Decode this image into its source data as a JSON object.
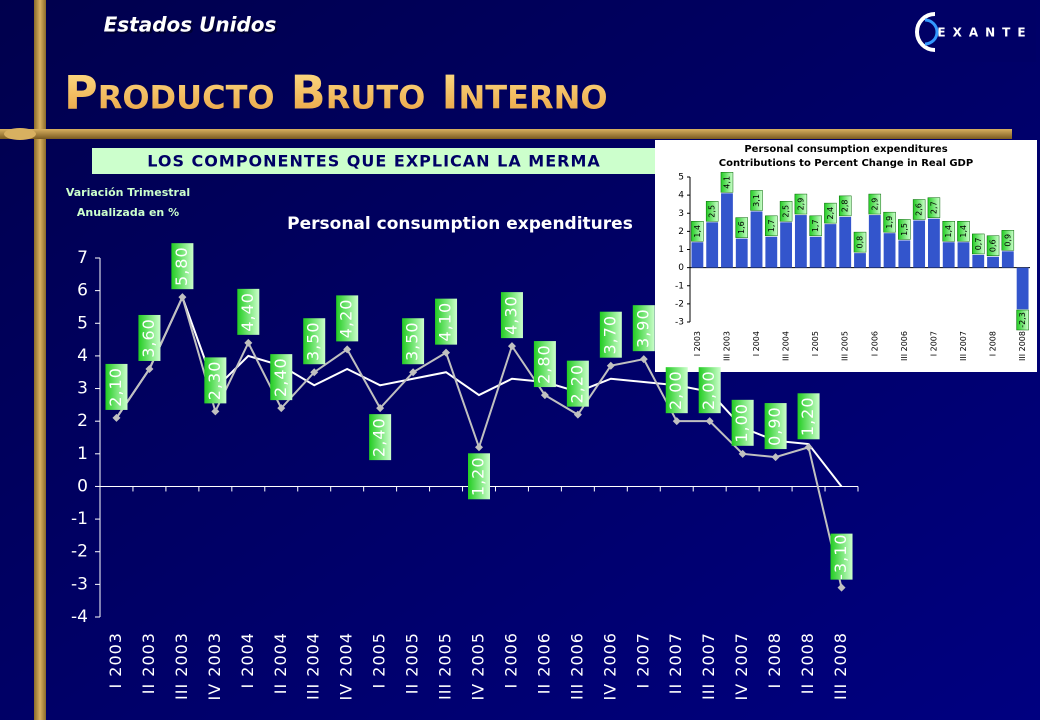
{
  "header": {
    "region": "Estados Unidos",
    "title": "Producto Bruto Interno",
    "logo": "EXANTE"
  },
  "subtitle_box": "LOS COMPONENTES QUE EXPLICAN LA MERMA",
  "chart_data": [
    {
      "type": "line",
      "title": "Personal consumption expenditures",
      "ylabel": [
        "Variación Trimestral",
        "Anualizada en %"
      ],
      "categories": [
        "I 2003",
        "II 2003",
        "III 2003",
        "IV 2003",
        "I 2004",
        "II 2004",
        "III 2004",
        "IV 2004",
        "I 2005",
        "II 2005",
        "III 2005",
        "IV 2005",
        "I 2006",
        "II 2006",
        "III 2006",
        "IV 2006",
        "I 2007",
        "II 2007",
        "III 2007",
        "IV 2007",
        "I 2008",
        "II 2008",
        "III 2008"
      ],
      "series": [
        {
          "color": "#c0c0c0",
          "values": [
            2.1,
            3.6,
            5.8,
            2.3,
            4.4,
            2.4,
            3.5,
            4.2,
            2.4,
            3.5,
            4.1,
            1.2,
            4.3,
            2.8,
            2.2,
            3.7,
            3.9,
            2.0,
            2.0,
            1.0,
            0.9,
            1.2,
            -3.1
          ],
          "value_labels": [
            "2,10",
            "3,60",
            "5,80",
            "2,30",
            "4,40",
            "2,40",
            "3,50",
            "4,20",
            "2,40",
            "3,50",
            "4,10",
            "1,20",
            "4,30",
            "2,80",
            "2,20",
            "3,70",
            "3,90",
            "2,00",
            "2,00",
            "1,00",
            "0,90",
            "1,20",
            "-3,10"
          ]
        },
        {
          "color": "#ffffff",
          "values": [
            2.1,
            3.6,
            5.8,
            3.0,
            4.0,
            3.7,
            3.1,
            3.6,
            3.1,
            3.3,
            3.5,
            2.8,
            3.3,
            3.2,
            2.9,
            3.3,
            3.2,
            3.1,
            2.9,
            1.8,
            1.4,
            1.3,
            0.0
          ]
        }
      ],
      "ylim": [
        -4,
        7
      ],
      "yticks": [
        -4,
        -3,
        -2,
        -1,
        0,
        1,
        2,
        3,
        4,
        5,
        6,
        7
      ],
      "label_color": "#33cc33"
    },
    {
      "type": "bar",
      "title": [
        "Personal consumption expenditures",
        "Contributions to Percent Change in Real GDP"
      ],
      "categories": [
        "I 2003",
        null,
        "III 2003",
        null,
        "I 2004",
        null,
        "III 2004",
        null,
        "I 2005",
        null,
        "III 2005",
        null,
        "I 2006",
        null,
        "III 2006",
        null,
        "I 2007",
        null,
        "III 2007",
        null,
        "I 2008",
        null,
        "III 2008"
      ],
      "values": [
        1.4,
        2.5,
        4.1,
        1.6,
        3.1,
        1.7,
        2.5,
        2.9,
        1.7,
        2.4,
        2.8,
        0.8,
        2.9,
        1.9,
        1.5,
        2.6,
        2.7,
        1.4,
        1.4,
        0.7,
        0.6,
        0.9,
        -2.3
      ],
      "value_labels": [
        "1,4",
        "2,5",
        "4,1",
        "1,6",
        "3,1",
        "1,7",
        "2,5",
        "2,9",
        "1,7",
        "2,4",
        "2,8",
        "0,8",
        "2,9",
        "1,9",
        "1,5",
        "2,6",
        "2,7",
        "1,4",
        "1,4",
        "0,7",
        "0,6",
        "0,9",
        "-2,3"
      ],
      "color": "#3355cc",
      "ylim": [
        -3,
        5
      ],
      "yticks": [
        -3,
        -2,
        -1,
        0,
        1,
        2,
        3,
        4,
        5
      ],
      "label_color": "#33cc33"
    }
  ]
}
